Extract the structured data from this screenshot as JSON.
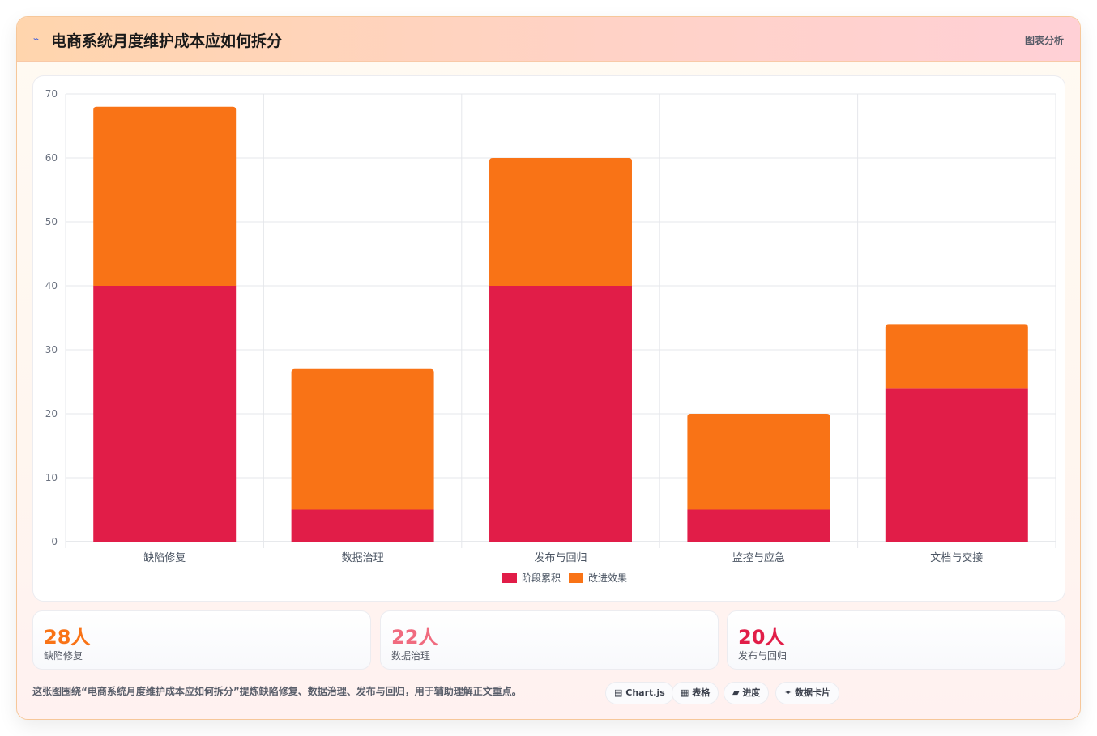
{
  "header": {
    "icon": "chart-line-icon",
    "title": "电商系统月度维护成本应如何拆分",
    "link": "图表分析"
  },
  "chart_data": {
    "type": "bar",
    "stacked": true,
    "categories": [
      "缺陷修复",
      "数据治理",
      "发布与回归",
      "监控与应急",
      "文档与交接"
    ],
    "series": [
      {
        "name": "阶段累积",
        "color": "#e11d48",
        "values": [
          40,
          5,
          40,
          5,
          24
        ]
      },
      {
        "name": "改进效果",
        "color": "#f97316",
        "values": [
          28,
          22,
          20,
          15,
          10
        ]
      }
    ],
    "ylim": [
      0,
      70
    ],
    "yticks": [
      0,
      10,
      20,
      30,
      40,
      50,
      60,
      70
    ],
    "legend": "bottom-center",
    "grid": true
  },
  "stats": [
    {
      "value": "28人",
      "label": "缺陷修复",
      "color": "#f97316"
    },
    {
      "value": "22人",
      "label": "数据治理",
      "color": "#f06b7f"
    },
    {
      "value": "20人",
      "label": "发布与回归",
      "color": "#e11d48"
    }
  ],
  "summary": "这张图围绕“电商系统月度维护成本应如何拆分”提炼缺陷修复、数据治理、发布与回归，用于辅助理解正文重点。",
  "tags": [
    {
      "icon": "▤",
      "label": "Chart.js"
    },
    {
      "icon": "▦",
      "label": "表格"
    },
    {
      "icon": "▰",
      "label": "进度"
    },
    {
      "icon": "✦",
      "label": "数据卡片"
    }
  ]
}
